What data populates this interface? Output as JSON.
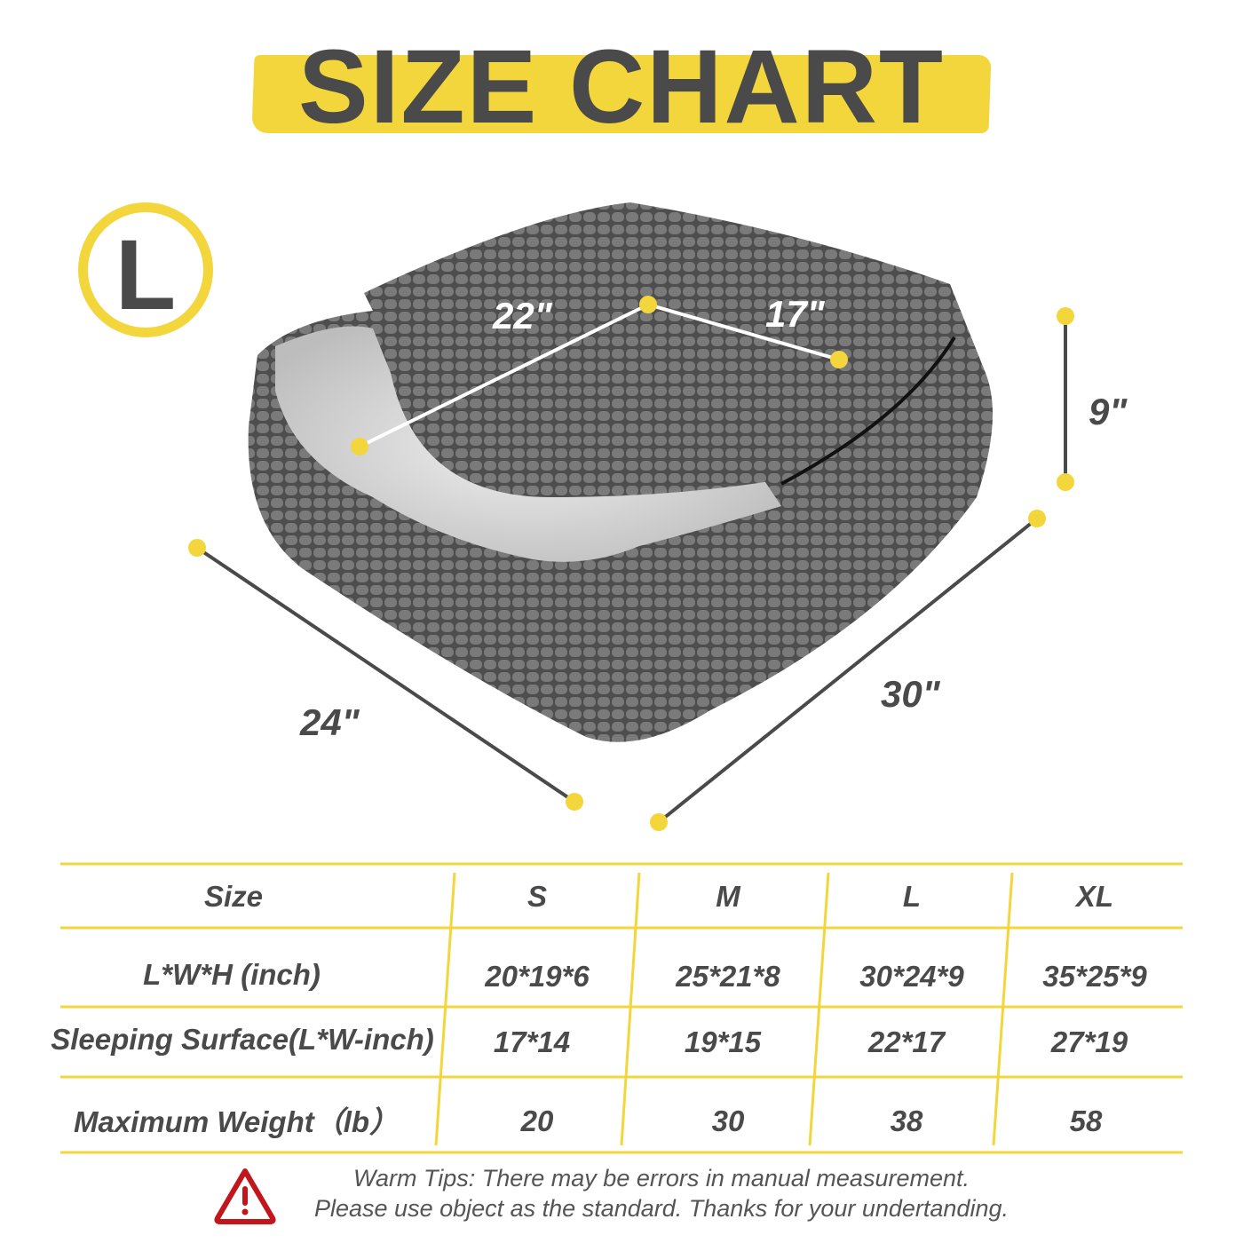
{
  "title": "SIZE CHART",
  "size_badge": "L",
  "dimensions": {
    "surface_length": "22\"",
    "surface_width": "17\"",
    "height": "9\"",
    "width": "24\"",
    "length": "30\""
  },
  "table": {
    "headers": [
      "Size",
      "S",
      "M",
      "L",
      "XL"
    ],
    "rows": [
      {
        "label": "L*W*H (inch)",
        "values": [
          "20*19*6",
          "25*21*8",
          "30*24*9",
          "35*25*9"
        ]
      },
      {
        "label": "Sleeping Surface(L*W-inch)",
        "values": [
          "17*14",
          "19*15",
          "22*17",
          "27*19"
        ]
      },
      {
        "label": "Maximum Weight（lb）",
        "values": [
          "20",
          "30",
          "38",
          "58"
        ]
      }
    ]
  },
  "tips": {
    "line1": "Warm Tips: There may be errors in manual measurement.",
    "line2": "Please use object as the standard. Thanks for your undertanding."
  },
  "colors": {
    "accent": "#f2d63c",
    "text": "#4a4a4a",
    "warning": "#c0161c",
    "fabric": "#6b6b6b"
  }
}
